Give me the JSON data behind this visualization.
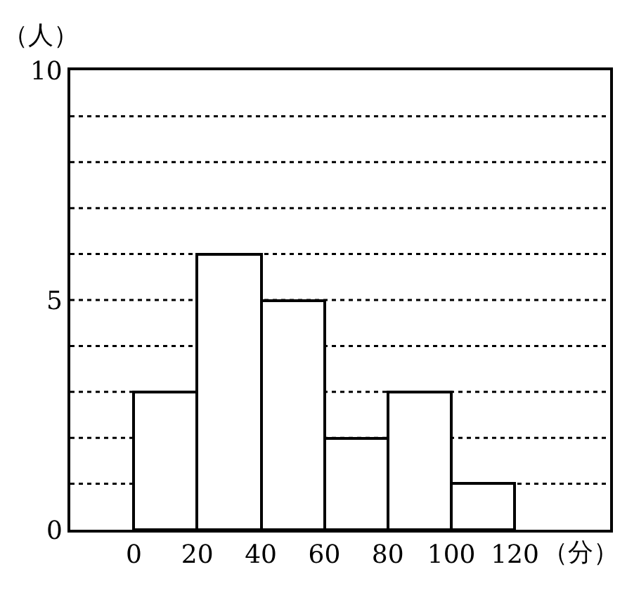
{
  "chart_data": {
    "type": "histogram",
    "xlabel": "（分）",
    "ylabel": "（人）",
    "bins": [
      0,
      20,
      40,
      60,
      80,
      100,
      120
    ],
    "values": [
      3,
      6,
      5,
      2,
      3,
      1
    ],
    "color": "#ffffff",
    "xlim": [
      -20,
      150
    ],
    "xticks": [
      0,
      20,
      40,
      60,
      80,
      100,
      120
    ],
    "ylim": [
      0,
      10
    ],
    "yticks": [
      0,
      {
        "value": 1,
        "label": null
      },
      {
        "value": 2,
        "label": null
      },
      {
        "value": 3,
        "label": null
      },
      {
        "value": 4,
        "label": null
      },
      5,
      {
        "value": 6,
        "label": null
      },
      {
        "value": 7,
        "label": null
      },
      {
        "value": 8,
        "label": null
      },
      {
        "value": 9,
        "label": null
      },
      10
    ],
    "grid": "y"
  }
}
